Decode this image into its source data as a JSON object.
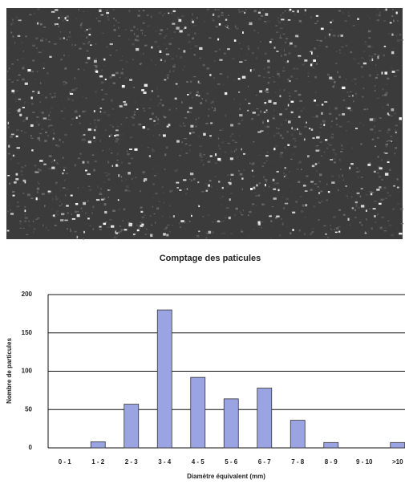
{
  "chart_data": {
    "type": "bar",
    "title": "Comptage des paticules",
    "x_label": "Diamètre équivalent (mm)",
    "y_label": "Nombre de particules",
    "categories": [
      "0 - 1",
      "1 - 2",
      "2 - 3",
      "3 - 4",
      "4 - 5",
      "5 - 6",
      "6 - 7",
      "7 - 8",
      "8 - 9",
      "9 - 10",
      ">10"
    ],
    "values": [
      0,
      8,
      57,
      180,
      92,
      64,
      78,
      36,
      7,
      0,
      7
    ],
    "color": "#9aa4e2",
    "ylim": [
      0,
      200
    ],
    "yticks": [
      0,
      50,
      100,
      150,
      200
    ],
    "grid": true
  }
}
